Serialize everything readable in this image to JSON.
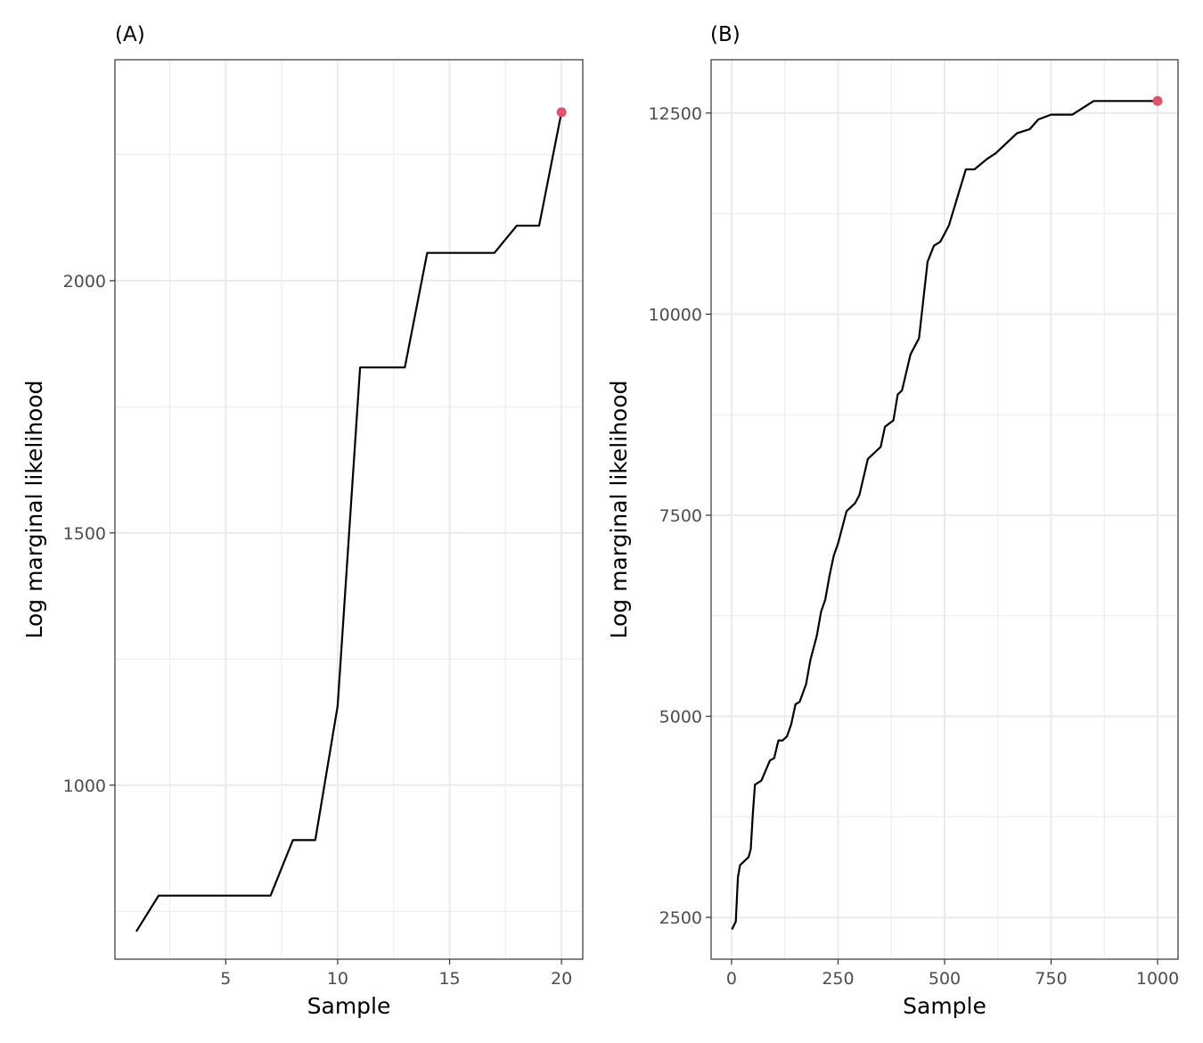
{
  "chart_data": [
    {
      "tag": "(A)",
      "type": "line",
      "xlabel": "Sample",
      "ylabel": "Log marginal likelihood",
      "xlim": [
        0.05,
        20.95
      ],
      "ylim": [
        655,
        2438
      ],
      "x_ticks": [
        5,
        10,
        15,
        20
      ],
      "x_tick_labels": [
        "5",
        "10",
        "15",
        "20"
      ],
      "y_ticks": [
        1000,
        1500,
        2000
      ],
      "y_tick_labels": [
        "1000",
        "1500",
        "2000"
      ],
      "x_minor": [
        2.5,
        7.5,
        12.5,
        17.5
      ],
      "y_minor": [
        750,
        1250,
        1750,
        2250
      ],
      "grid": true,
      "series": [
        {
          "x": [
            1,
            2,
            3,
            4,
            5,
            6,
            7,
            8,
            9,
            10,
            11,
            12,
            13,
            14,
            15,
            16,
            17,
            18,
            19,
            20
          ],
          "values": [
            710,
            781,
            781,
            781,
            781,
            781,
            781,
            891,
            891,
            1157,
            1828,
            1828,
            1828,
            2055,
            2055,
            2055,
            2055,
            2109,
            2109,
            2334
          ]
        }
      ],
      "highlight": {
        "x": 20,
        "y": 2334,
        "color": "#df536b"
      }
    },
    {
      "tag": "(B)",
      "type": "line",
      "xlabel": "Sample",
      "ylabel": "Log marginal likelihood",
      "xlim": [
        -48,
        1048
      ],
      "ylim": [
        1980,
        13163
      ],
      "x_ticks": [
        0,
        250,
        500,
        750,
        1000
      ],
      "x_tick_labels": [
        "0",
        "250",
        "500",
        "750",
        "1000"
      ],
      "y_ticks": [
        2500,
        5000,
        7500,
        10000,
        12500
      ],
      "y_tick_labels": [
        "2500",
        "5000",
        "7500",
        "10000",
        "12500"
      ],
      "x_minor": [
        125,
        375,
        625,
        875
      ],
      "y_minor": [
        3750,
        6250,
        8750,
        11250
      ],
      "grid": true,
      "series": [
        {
          "x": [
            1,
            10,
            15,
            20,
            40,
            45,
            50,
            55,
            70,
            90,
            100,
            110,
            120,
            130,
            140,
            150,
            160,
            175,
            185,
            200,
            210,
            220,
            230,
            240,
            250,
            270,
            290,
            300,
            320,
            330,
            350,
            360,
            380,
            390,
            400,
            420,
            430,
            440,
            460,
            475,
            490,
            510,
            530,
            550,
            570,
            600,
            620,
            660,
            670,
            700,
            720,
            750,
            800,
            850,
            900,
            1000
          ],
          "values": [
            2350,
            2450,
            3000,
            3150,
            3250,
            3350,
            3800,
            4150,
            4200,
            4450,
            4480,
            4700,
            4700,
            4750,
            4900,
            5150,
            5180,
            5400,
            5700,
            6000,
            6300,
            6450,
            6750,
            7000,
            7150,
            7550,
            7650,
            7750,
            8200,
            8250,
            8350,
            8600,
            8680,
            9000,
            9050,
            9500,
            9600,
            9700,
            10650,
            10850,
            10900,
            11100,
            11450,
            11800,
            11800,
            11930,
            12000,
            12200,
            12250,
            12300,
            12420,
            12480,
            12480,
            12650,
            12650,
            12650
          ]
        }
      ],
      "highlight": {
        "x": 1000,
        "y": 12650,
        "color": "#df536b"
      }
    }
  ]
}
